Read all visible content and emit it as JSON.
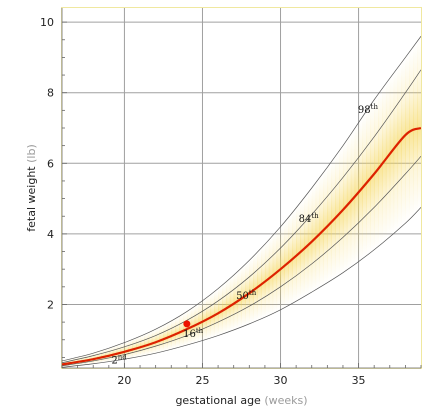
{
  "chart_data": {
    "type": "line",
    "xlabel": "gestational age",
    "xunit": "(weeks)",
    "ylabel": "fetal weight",
    "yunit": "(lb)",
    "xlim": [
      16,
      39
    ],
    "ylim": [
      0.2,
      10.4
    ],
    "xticks": [
      20,
      25,
      30,
      35
    ],
    "yticks": [
      2,
      4,
      6,
      8,
      10
    ],
    "grid": true,
    "x": [
      16,
      18,
      20,
      22,
      24,
      26,
      28,
      30,
      32,
      34,
      36,
      38,
      39
    ],
    "series": [
      {
        "name": "2nd",
        "label_x": 19.8,
        "values": [
          0.22,
          0.32,
          0.45,
          0.62,
          0.85,
          1.12,
          1.45,
          1.85,
          2.35,
          2.9,
          3.55,
          4.3,
          4.75
        ]
      },
      {
        "name": "16th",
        "label_x": 24.4,
        "values": [
          0.26,
          0.4,
          0.58,
          0.82,
          1.12,
          1.5,
          1.95,
          2.5,
          3.15,
          3.9,
          4.75,
          5.7,
          6.2
        ]
      },
      {
        "name": "50th",
        "label_x": 27.8,
        "values": [
          0.3,
          0.45,
          0.66,
          0.93,
          1.3,
          1.75,
          2.32,
          3.0,
          3.78,
          4.68,
          5.7,
          6.8,
          7.0
        ]
      },
      {
        "name": "84th",
        "label_x": 31.8,
        "values": [
          0.35,
          0.55,
          0.8,
          1.12,
          1.55,
          2.1,
          2.78,
          3.6,
          4.55,
          5.6,
          6.75,
          8.0,
          8.65
        ]
      },
      {
        "name": "98th",
        "label_x": 35.6,
        "values": [
          0.4,
          0.62,
          0.92,
          1.3,
          1.8,
          2.45,
          3.25,
          4.2,
          5.3,
          6.5,
          7.8,
          9.0,
          9.6
        ]
      }
    ],
    "highlight_point": {
      "x": 24,
      "y": 1.45
    },
    "colors": {
      "median": "#dd2200",
      "point": "#ee1100",
      "band": "#f5d65a",
      "grid": "#a0a0a0",
      "percentile": "#555555",
      "axis_frame": "#f0e8a0"
    }
  }
}
